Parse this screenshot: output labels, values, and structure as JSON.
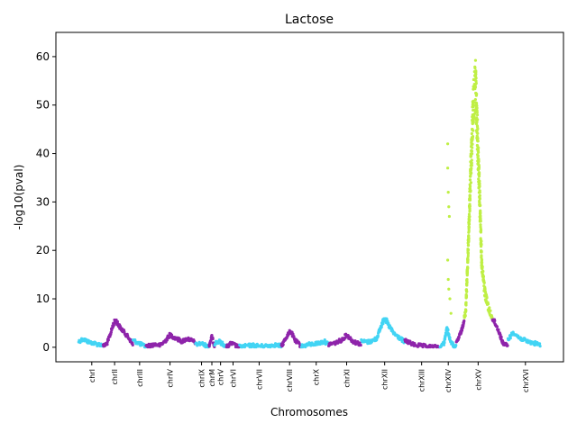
{
  "chart_data": {
    "type": "scatter",
    "title": "Lactose",
    "xlabel": "Chromosomes",
    "ylabel": "-log10(pval)",
    "ylim": [
      -3,
      65
    ],
    "xlim": [
      0,
      1
    ],
    "yticks": [
      0,
      10,
      20,
      30,
      40,
      50,
      60
    ],
    "grid": false,
    "legend": "none",
    "colors": {
      "low_purple": "#8e24aa",
      "low_cyan": "#42d4f4",
      "significant": "#bfef45"
    },
    "threshold": 6,
    "chromosomes": [
      {
        "name": "chrI",
        "start": 0.0,
        "end": 0.045,
        "label_pos": 0.024,
        "color": "cyan",
        "segments": [
          [
            0.0,
            1.6
          ],
          [
            0.008,
            2.1
          ],
          [
            0.018,
            1.5
          ],
          [
            0.026,
            1.3
          ],
          [
            0.036,
            1.0
          ],
          [
            0.045,
            0.9
          ]
        ]
      },
      {
        "name": "chrII",
        "start": 0.045,
        "end": 0.1,
        "label_pos": 0.066,
        "color": "purple",
        "segments": [
          [
            0.045,
            0.6
          ],
          [
            0.052,
            1.2
          ],
          [
            0.058,
            3.0
          ],
          [
            0.063,
            5.0
          ],
          [
            0.068,
            6.2
          ],
          [
            0.076,
            4.5
          ],
          [
            0.086,
            3.2
          ],
          [
            0.094,
            2.0
          ],
          [
            0.1,
            0.9
          ]
        ]
      },
      {
        "name": "chrIII",
        "start": 0.1,
        "end": 0.124,
        "label_pos": 0.112,
        "color": "cyan",
        "segments": [
          [
            0.1,
            1.8
          ],
          [
            0.108,
            1.4
          ],
          [
            0.116,
            0.9
          ],
          [
            0.124,
            0.5
          ]
        ]
      },
      {
        "name": "chrIV",
        "start": 0.124,
        "end": 0.215,
        "label_pos": 0.168,
        "color": "purple",
        "segments": [
          [
            0.124,
            0.6
          ],
          [
            0.14,
            1.0
          ],
          [
            0.15,
            0.8
          ],
          [
            0.16,
            1.8
          ],
          [
            0.168,
            3.0
          ],
          [
            0.176,
            2.4
          ],
          [
            0.19,
            1.6
          ],
          [
            0.2,
            2.2
          ],
          [
            0.215,
            1.4
          ]
        ]
      },
      {
        "name": "chrIX",
        "start": 0.215,
        "end": 0.24,
        "label_pos": 0.226,
        "color": "cyan",
        "segments": [
          [
            0.215,
            0.9
          ],
          [
            0.225,
            1.2
          ],
          [
            0.235,
            0.7
          ],
          [
            0.24,
            0.5
          ]
        ]
      },
      {
        "name": "chrM",
        "start": 0.24,
        "end": 0.25,
        "label_pos": 0.245,
        "color": "purple",
        "segments": [
          [
            0.24,
            0.8
          ],
          [
            0.245,
            2.6
          ],
          [
            0.25,
            0.6
          ]
        ]
      },
      {
        "name": "chrV",
        "start": 0.25,
        "end": 0.272,
        "label_pos": 0.261,
        "color": "cyan",
        "segments": [
          [
            0.25,
            1.2
          ],
          [
            0.258,
            1.6
          ],
          [
            0.266,
            1.0
          ],
          [
            0.272,
            0.6
          ]
        ]
      },
      {
        "name": "chrVI",
        "start": 0.272,
        "end": 0.296,
        "label_pos": 0.284,
        "color": "purple",
        "segments": [
          [
            0.272,
            0.4
          ],
          [
            0.28,
            1.2
          ],
          [
            0.288,
            0.8
          ],
          [
            0.296,
            0.3
          ]
        ]
      },
      {
        "name": "chrVII",
        "start": 0.296,
        "end": 0.373,
        "label_pos": 0.332,
        "color": "cyan",
        "segments": [
          [
            0.296,
            0.5
          ],
          [
            0.32,
            0.8
          ],
          [
            0.34,
            0.6
          ],
          [
            0.36,
            0.9
          ],
          [
            0.373,
            0.7
          ]
        ]
      },
      {
        "name": "chrVIII",
        "start": 0.373,
        "end": 0.41,
        "label_pos": 0.388,
        "color": "purple",
        "segments": [
          [
            0.373,
            0.6
          ],
          [
            0.382,
            2.5
          ],
          [
            0.39,
            3.8
          ],
          [
            0.398,
            1.8
          ],
          [
            0.41,
            0.6
          ]
        ]
      },
      {
        "name": "chrX",
        "start": 0.41,
        "end": 0.46,
        "label_pos": 0.437,
        "color": "cyan",
        "segments": [
          [
            0.41,
            0.6
          ],
          [
            0.425,
            1.0
          ],
          [
            0.44,
            1.2
          ],
          [
            0.452,
            1.6
          ],
          [
            0.46,
            1.0
          ]
        ]
      },
      {
        "name": "chrXI",
        "start": 0.46,
        "end": 0.52,
        "label_pos": 0.493,
        "color": "purple",
        "segments": [
          [
            0.46,
            1.0
          ],
          [
            0.475,
            1.4
          ],
          [
            0.485,
            2.0
          ],
          [
            0.493,
            3.0
          ],
          [
            0.505,
            1.6
          ],
          [
            0.52,
            1.0
          ]
        ]
      },
      {
        "name": "chrXII",
        "start": 0.52,
        "end": 0.6,
        "label_pos": 0.563,
        "color": "cyan",
        "segments": [
          [
            0.52,
            1.6
          ],
          [
            0.535,
            1.5
          ],
          [
            0.548,
            2.2
          ],
          [
            0.556,
            4.6
          ],
          [
            0.563,
            6.8
          ],
          [
            0.57,
            5.0
          ],
          [
            0.58,
            3.2
          ],
          [
            0.6,
            1.5
          ]
        ]
      },
      {
        "name": "chrXIII",
        "start": 0.6,
        "end": 0.665,
        "label_pos": 0.631,
        "color": "purple",
        "segments": [
          [
            0.6,
            1.8
          ],
          [
            0.615,
            1.0
          ],
          [
            0.63,
            0.7
          ],
          [
            0.645,
            0.5
          ],
          [
            0.665,
            0.4
          ]
        ]
      },
      {
        "name": "chrXIV",
        "start": 0.665,
        "end": 0.695,
        "label_pos": 0.68,
        "color": "cyan",
        "segments": [
          [
            0.665,
            0.4
          ],
          [
            0.672,
            1.2
          ],
          [
            0.678,
            4.5
          ],
          [
            0.683,
            2.0
          ],
          [
            0.69,
            0.6
          ],
          [
            0.695,
            0.4
          ]
        ]
      },
      {
        "name": "chrXV",
        "start": 0.695,
        "end": 0.79,
        "label_pos": 0.735,
        "color": "purple",
        "segments": [
          [
            0.695,
            1.2
          ],
          [
            0.705,
            4.0
          ],
          [
            0.712,
            8.0
          ],
          [
            0.716,
            20.0
          ],
          [
            0.72,
            35.0
          ],
          [
            0.726,
            55.0
          ],
          [
            0.73,
            60.0
          ],
          [
            0.736,
            40.0
          ],
          [
            0.742,
            18.0
          ],
          [
            0.748,
            12.0
          ],
          [
            0.756,
            8.0
          ],
          [
            0.764,
            6.0
          ],
          [
            0.772,
            4.0
          ],
          [
            0.78,
            1.4
          ],
          [
            0.79,
            0.5
          ]
        ]
      },
      {
        "name": "chrXVI",
        "start": 0.79,
        "end": 0.85,
        "label_pos": 0.822,
        "color": "cyan",
        "segments": [
          [
            0.79,
            2.0
          ],
          [
            0.8,
            3.5
          ],
          [
            0.81,
            2.4
          ],
          [
            0.825,
            1.6
          ],
          [
            0.84,
            1.2
          ],
          [
            0.85,
            0.8
          ]
        ]
      }
    ],
    "extra_points": [
      {
        "x": 0.679,
        "y": 42.0
      },
      {
        "x": 0.679,
        "y": 37.0
      },
      {
        "x": 0.68,
        "y": 32.0
      },
      {
        "x": 0.681,
        "y": 29.0
      },
      {
        "x": 0.682,
        "y": 27.0
      },
      {
        "x": 0.679,
        "y": 18.0
      },
      {
        "x": 0.68,
        "y": 14.0
      },
      {
        "x": 0.681,
        "y": 12.0
      },
      {
        "x": 0.683,
        "y": 10.0
      },
      {
        "x": 0.685,
        "y": 7.0
      }
    ]
  }
}
